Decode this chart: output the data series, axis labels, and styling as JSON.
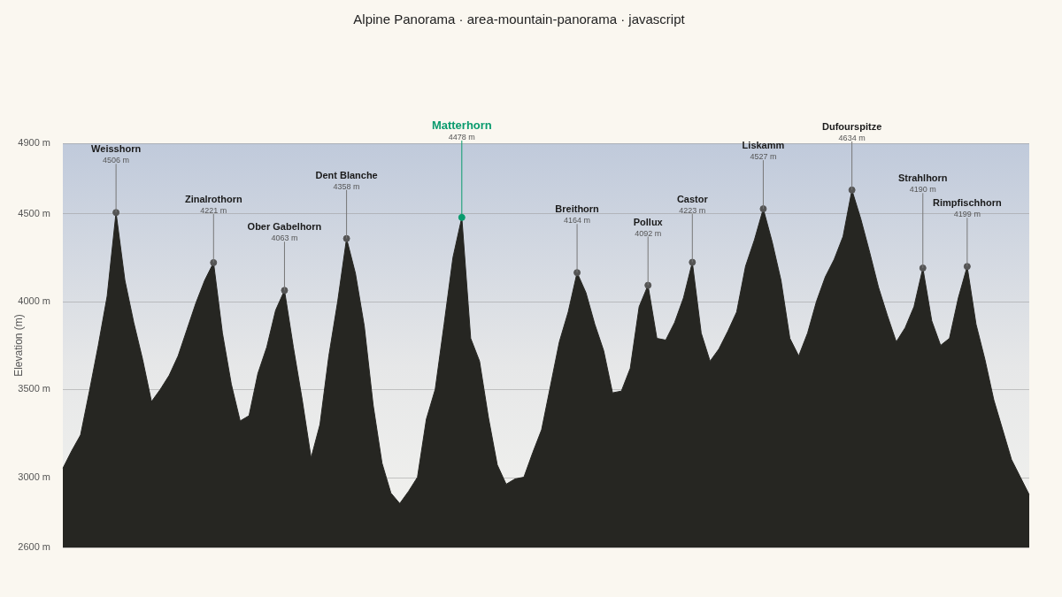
{
  "chart_data": {
    "type": "area",
    "title": "Alpine Panorama · area-mountain-panorama · javascript",
    "ylabel": "Elevation (m)",
    "categories": [
      null,
      null,
      null,
      null,
      null,
      null,
      "Weisshorn",
      null,
      null,
      null,
      null,
      null,
      null,
      null,
      null,
      null,
      null,
      "Zinalrothorn",
      null,
      null,
      null,
      null,
      null,
      null,
      null,
      "Ober Gabelhorn",
      null,
      null,
      null,
      null,
      null,
      null,
      "Dent Blanche",
      null,
      null,
      null,
      null,
      null,
      null,
      null,
      null,
      null,
      null,
      null,
      null,
      "Matterhorn",
      null,
      null,
      null,
      null,
      null,
      null,
      null,
      null,
      null,
      null,
      null,
      null,
      "Breithorn",
      null,
      null,
      null,
      null,
      null,
      null,
      null,
      "Pollux",
      null,
      null,
      null,
      null,
      "Castor",
      null,
      null,
      null,
      null,
      null,
      null,
      null,
      "Liskamm",
      null,
      null,
      null,
      null,
      null,
      null,
      null,
      null,
      null,
      "Dufourspitze",
      null,
      null,
      null,
      null,
      null,
      null,
      null,
      "Strahlhorn",
      null,
      null,
      null,
      null,
      "Rimpfischhorn",
      null,
      null,
      null,
      null,
      null,
      null,
      null
    ],
    "series": [
      {
        "color": "#262622",
        "values": [
          3050,
          3150,
          3240,
          3490,
          3750,
          4030,
          4506,
          4120,
          3880,
          3670,
          3430,
          3500,
          3580,
          3690,
          3840,
          3990,
          4120,
          4221,
          3820,
          3530,
          3320,
          3350,
          3590,
          3740,
          3950,
          4063,
          3740,
          3440,
          3110,
          3300,
          3690,
          4000,
          4358,
          4160,
          3860,
          3410,
          3080,
          2910,
          2850,
          2920,
          3000,
          3330,
          3500,
          3870,
          4250,
          4478,
          3790,
          3660,
          3340,
          3070,
          2960,
          2990,
          3000,
          3140,
          3270,
          3520,
          3770,
          3940,
          4164,
          4050,
          3870,
          3720,
          3480,
          3490,
          3620,
          3970,
          4092,
          3790,
          3780,
          3880,
          4020,
          4223,
          3820,
          3660,
          3730,
          3830,
          3940,
          4200,
          4350,
          4527,
          4340,
          4120,
          3790,
          3690,
          3820,
          4000,
          4140,
          4240,
          4370,
          4634,
          4470,
          4280,
          4080,
          3920,
          3770,
          3850,
          3970,
          4190,
          3890,
          3750,
          3790,
          4020,
          4199,
          3870,
          3670,
          3440,
          3270,
          3100,
          3000,
          2900
        ]
      },
      {
        "type": "scatter",
        "marker": "circle",
        "x": [
          "Weisshorn",
          "Zinalrothorn",
          "Ober Gabelhorn",
          "Dent Blanche",
          "Matterhorn",
          "Breithorn",
          "Pollux",
          "Castor",
          "Liskamm",
          "Dufourspitze",
          "Strahlhorn",
          "Rimpfischhorn"
        ],
        "values": [
          4506,
          4221,
          4063,
          4358,
          4478,
          4164,
          4092,
          4223,
          4527,
          4634,
          4190,
          4199
        ],
        "colors": [
          "#555555",
          "#555555",
          "#555555",
          "#555555",
          "#0a9b6e",
          "#555555",
          "#555555",
          "#555555",
          "#555555",
          "#555555",
          "#555555",
          "#555555"
        ],
        "value_labels": [
          "4506 m",
          "4221 m",
          "4063 m",
          "4358 m",
          "4478 m",
          "4164 m",
          "4092 m",
          "4223 m",
          "4527 m",
          "4634 m",
          "4190 m",
          "4199 m"
        ]
      }
    ],
    "ylim": [
      2600,
      4900
    ],
    "yticks": [
      {
        "value": 2600,
        "label": "2600 m"
      },
      {
        "value": 3000,
        "label": "3000 m"
      },
      {
        "value": 3500,
        "label": "3500 m"
      },
      {
        "value": 4000,
        "label": "4000 m"
      },
      {
        "value": 4500,
        "label": "4500 m"
      },
      {
        "value": 4900,
        "label": "4900 m"
      }
    ],
    "grid": "y",
    "tick_labels": "y"
  }
}
